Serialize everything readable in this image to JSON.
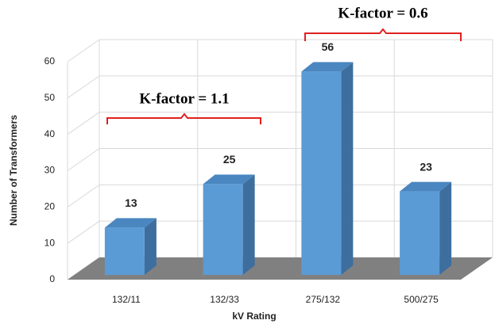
{
  "chart_data": {
    "type": "bar3d",
    "categories": [
      "132/11",
      "132/33",
      "275/132",
      "500/275"
    ],
    "values": [
      13,
      25,
      56,
      23
    ],
    "color": "#5b9bd5",
    "ylim": [
      0,
      60
    ],
    "yticks": [
      0,
      10,
      20,
      30,
      40,
      50,
      60
    ],
    "grid": true,
    "x_label": "kV Rating",
    "y_label": "Number of Transformers",
    "annotations": [
      "K-factor = 1.1",
      "K-factor = 0.6"
    ]
  }
}
